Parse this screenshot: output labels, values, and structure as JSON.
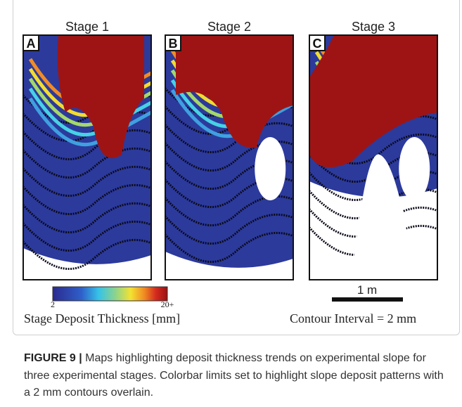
{
  "panels": [
    {
      "label": "A",
      "title": "Stage 1"
    },
    {
      "label": "B",
      "title": "Stage 2"
    },
    {
      "label": "C",
      "title": "Stage 3"
    }
  ],
  "colorbar": {
    "min_label": "2",
    "max_label": "20+",
    "title": "Stage Deposit Thickness [mm]"
  },
  "scale_bar": {
    "label": "1 m"
  },
  "contour_note": "Contour Interval = 2 mm",
  "caption": {
    "label": "FIGURE 9 |",
    "text": "Maps highlighting deposit thickness trends on experimental slope for three experimental stages. Colorbar limits set to highlight slope deposit patterns with a 2 mm contours overlain."
  }
}
